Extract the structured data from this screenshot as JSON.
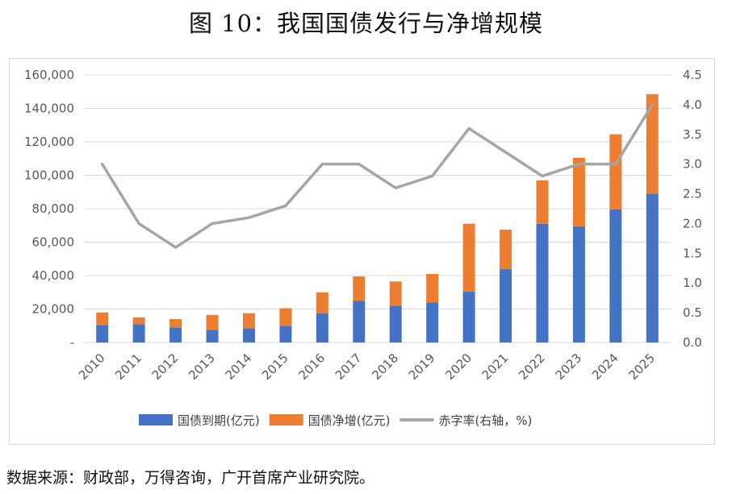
{
  "title": "图 10：我国国债发行与净增规模",
  "source": "数据来源：财政部，万得咨询，广开首席产业研究院。",
  "chart_data": {
    "type": "bar",
    "stacked": true,
    "categories": [
      "2010",
      "2011",
      "2012",
      "2013",
      "2014",
      "2015",
      "2016",
      "2017",
      "2018",
      "2019",
      "2020",
      "2021",
      "2022",
      "2023",
      "2024",
      "2025"
    ],
    "series": [
      {
        "name": "国债到期(亿元)",
        "axis": "left",
        "color": "#4472C4",
        "values": [
          10500,
          11000,
          9000,
          7500,
          8500,
          10000,
          17500,
          25000,
          22000,
          24000,
          30500,
          44000,
          71000,
          69500,
          79500,
          89000
        ]
      },
      {
        "name": "国债净增(亿元)",
        "axis": "left",
        "color": "#ED7D31",
        "values": [
          7500,
          4000,
          5000,
          9000,
          9000,
          10500,
          12500,
          14500,
          14500,
          17000,
          40500,
          23500,
          26000,
          41000,
          45000,
          59500
        ]
      },
      {
        "name": "赤字率(右轴，%)",
        "axis": "right",
        "type": "line",
        "color": "#A5A5A5",
        "values": [
          3.0,
          2.0,
          1.6,
          2.0,
          2.1,
          2.3,
          3.0,
          3.0,
          2.6,
          2.8,
          3.6,
          3.2,
          2.8,
          3.0,
          3.0,
          4.0
        ]
      }
    ],
    "y_left": {
      "ticks": [
        "-",
        "20,000",
        "40,000",
        "60,000",
        "80,000",
        "100,000",
        "120,000",
        "140,000",
        "160,000"
      ],
      "ylim": [
        0,
        160000
      ]
    },
    "y_right": {
      "ticks": [
        "0.0",
        "0.5",
        "1.0",
        "1.5",
        "2.0",
        "2.5",
        "3.0",
        "3.5",
        "4.0",
        "4.5"
      ],
      "ylim": [
        0,
        4.5
      ]
    },
    "grid": true,
    "legend_position": "bottom"
  }
}
